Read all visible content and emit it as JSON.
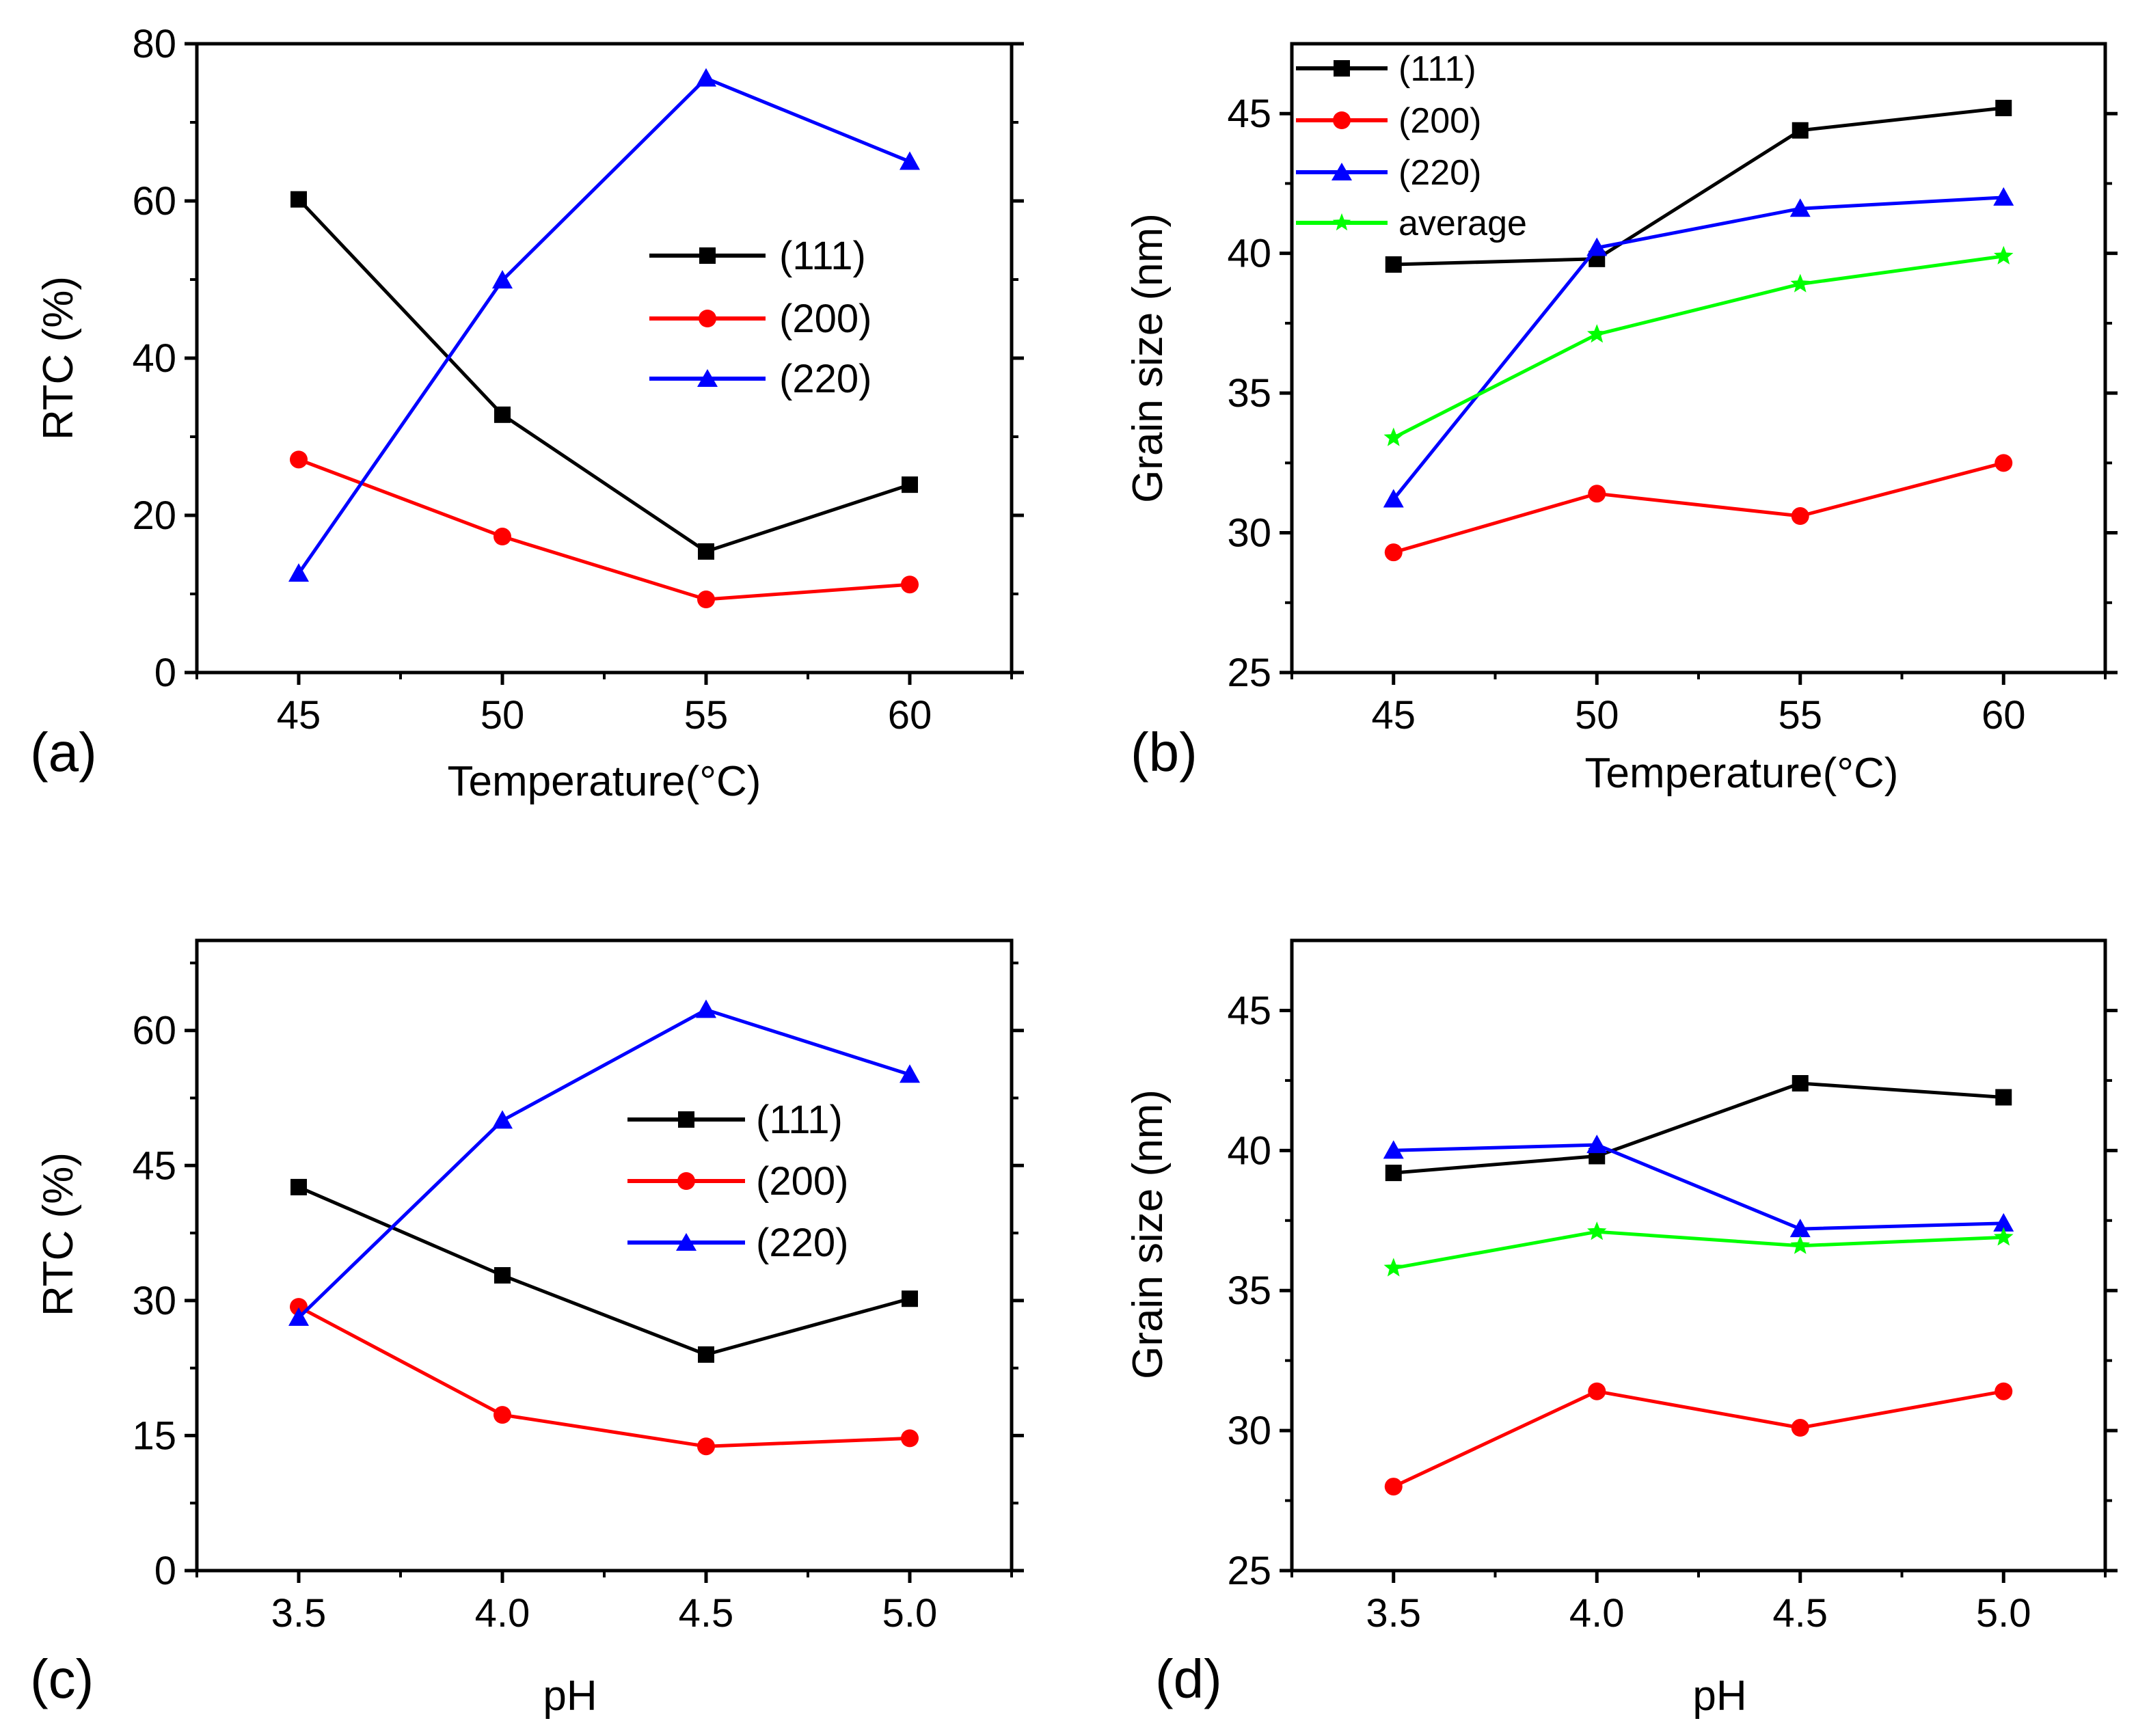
{
  "colors": {
    "s111": "#000000",
    "s200": "#ff0000",
    "s220": "#0000ff",
    "average": "#00ff00"
  },
  "chart_data": [
    {
      "panel": "(a)",
      "type": "line",
      "xlabel": "Temperature(°C)",
      "ylabel": "RTC (%)",
      "x": [
        45,
        50,
        55,
        60
      ],
      "xticks": [
        "45",
        "50",
        "55",
        "60"
      ],
      "xlim": [
        42.5,
        62.5
      ],
      "ylim": [
        0,
        80
      ],
      "yticks": [
        "0",
        "20",
        "40",
        "60",
        "80"
      ],
      "ytick_values": [
        0,
        20,
        40,
        60,
        80
      ],
      "legend_position": "center-right",
      "series": [
        {
          "name": "(111)",
          "key": "s111",
          "marker": "square",
          "values": [
            60.2,
            32.8,
            15.4,
            23.9
          ]
        },
        {
          "name": "(200)",
          "key": "s200",
          "marker": "circle",
          "values": [
            27.1,
            17.3,
            9.3,
            11.2
          ]
        },
        {
          "name": "(220)",
          "key": "s220",
          "marker": "triangle",
          "values": [
            12.6,
            49.9,
            75.6,
            65.0
          ]
        }
      ]
    },
    {
      "panel": "(b)",
      "type": "line",
      "xlabel": "Temperature(°C)",
      "ylabel": "Grain size (nm)",
      "x": [
        45,
        50,
        55,
        60
      ],
      "xticks": [
        "45",
        "50",
        "55",
        "60"
      ],
      "xlim": [
        42.5,
        62.5
      ],
      "ylim": [
        25,
        47.5
      ],
      "yticks": [
        "25",
        "30",
        "35",
        "40",
        "45"
      ],
      "ytick_values": [
        25,
        30,
        35,
        40,
        45
      ],
      "legend_position": "top-left",
      "series": [
        {
          "name": "(111)",
          "key": "s111",
          "marker": "square",
          "values": [
            39.6,
            39.8,
            44.4,
            45.2
          ]
        },
        {
          "name": "(200)",
          "key": "s200",
          "marker": "circle",
          "values": [
            29.3,
            31.4,
            30.6,
            32.5
          ]
        },
        {
          "name": "(220)",
          "key": "s220",
          "marker": "triangle",
          "values": [
            31.2,
            40.2,
            41.6,
            42.0
          ]
        },
        {
          "name": "average",
          "key": "average",
          "marker": "star",
          "values": [
            33.4,
            37.1,
            38.9,
            39.9
          ]
        }
      ]
    },
    {
      "panel": "(c)",
      "type": "line",
      "xlabel": "pH",
      "ylabel": "RTC (%)",
      "x": [
        3.5,
        4.0,
        4.5,
        5.0
      ],
      "xticks": [
        "3.5",
        "4.0",
        "4.5",
        "5.0"
      ],
      "xlim": [
        3.25,
        5.25
      ],
      "ylim": [
        0,
        70
      ],
      "yticks": [
        "0",
        "15",
        "30",
        "45",
        "60"
      ],
      "ytick_values": [
        0,
        15,
        30,
        45,
        60
      ],
      "legend_position": "center-right",
      "series": [
        {
          "name": "(111)",
          "key": "s111",
          "marker": "square",
          "values": [
            42.6,
            32.8,
            24.0,
            30.2
          ]
        },
        {
          "name": "(200)",
          "key": "s200",
          "marker": "circle",
          "values": [
            29.3,
            17.3,
            13.8,
            14.7
          ]
        },
        {
          "name": "(220)",
          "key": "s220",
          "marker": "triangle",
          "values": [
            28.1,
            50.0,
            62.3,
            55.1
          ]
        }
      ]
    },
    {
      "panel": "(d)",
      "type": "line",
      "xlabel": "pH",
      "ylabel": "Grain size (nm)",
      "x": [
        3.5,
        4.0,
        4.5,
        5.0
      ],
      "xticks": [
        "3.5",
        "4.0",
        "4.5",
        "5.0"
      ],
      "xlim": [
        3.25,
        5.25
      ],
      "ylim": [
        25,
        47.5
      ],
      "yticks": [
        "25",
        "30",
        "35",
        "40",
        "45"
      ],
      "ytick_values": [
        25,
        30,
        35,
        40,
        45
      ],
      "legend_position": "none",
      "series": [
        {
          "name": "(111)",
          "key": "s111",
          "marker": "square",
          "values": [
            39.2,
            39.8,
            42.4,
            41.9
          ]
        },
        {
          "name": "(200)",
          "key": "s200",
          "marker": "circle",
          "values": [
            28.0,
            31.4,
            30.1,
            31.4
          ]
        },
        {
          "name": "(220)",
          "key": "s220",
          "marker": "triangle",
          "values": [
            40.0,
            40.2,
            37.2,
            37.4
          ]
        },
        {
          "name": "average",
          "key": "average",
          "marker": "star",
          "values": [
            35.8,
            37.1,
            36.6,
            36.9
          ]
        }
      ]
    }
  ]
}
